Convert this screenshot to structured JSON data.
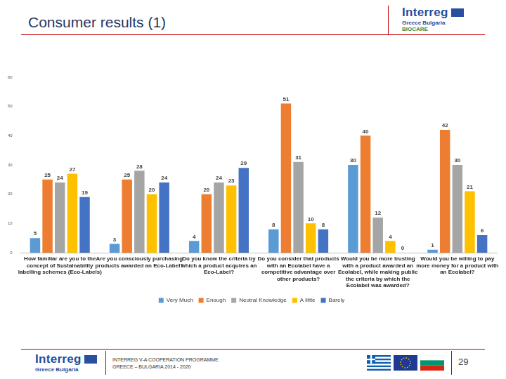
{
  "header": {
    "title": "Consumer results (1)",
    "logo": {
      "name": "Interreg",
      "subtitle": "Greece Bulgaria",
      "project": "BIOCARE"
    }
  },
  "chart_data": {
    "type": "bar",
    "categories": [
      "How familiar are you to the concept of Sustainability labelling schemes (Eco-Labels)",
      "Are you consciously purchasing products awarded an Eco-Label?",
      "Do you know the criteria by which a product acquires an Eco-Label?",
      "Do you consider that products with an Ecolabel have a competitive advantage over other products?",
      "Would you be more trusting with a product awarded an Ecolabel, while making public the criteria by which the Ecolabel was awarded?",
      "Would you be willing to pay more money for a product with an Ecolabel?"
    ],
    "series": [
      {
        "name": "Very Much",
        "color": "#5b9bd5",
        "values": [
          5,
          3,
          4,
          8,
          30,
          1
        ]
      },
      {
        "name": "Enough",
        "color": "#ed7d31",
        "values": [
          25,
          25,
          20,
          51,
          40,
          42
        ]
      },
      {
        "name": "Neutral Knowledge",
        "color": "#a5a5a5",
        "values": [
          24,
          28,
          24,
          31,
          12,
          30
        ]
      },
      {
        "name": "A little",
        "color": "#ffc000",
        "values": [
          27,
          20,
          23,
          10,
          4,
          21
        ]
      },
      {
        "name": "Barely",
        "color": "#4472c4",
        "values": [
          19,
          24,
          29,
          8,
          0,
          6
        ]
      }
    ],
    "ylim": [
      0,
      60
    ],
    "yticks": [
      0,
      10,
      20,
      30,
      40,
      50,
      60
    ],
    "grid": false,
    "legend": "bottom",
    "data_labels": true
  },
  "footer": {
    "logo": {
      "name": "Interreg",
      "subtitle": "Greece Bulgaria"
    },
    "text": [
      "INTERREG V-A COOPERATION PROGRAMME",
      "GREECE – BULGARIA 2014 - 2020"
    ],
    "page": 29
  }
}
